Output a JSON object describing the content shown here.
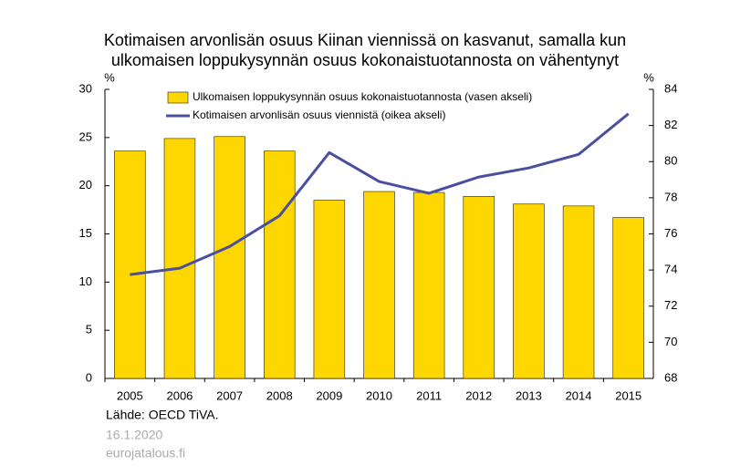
{
  "chart_data": {
    "type": "bar",
    "title": [
      "Kotimaisen arvonlisän osuus Kiinan viennissä on kasvanut, samalla kun",
      "ulkomaisen loppukysynnän osuus kokonaistuotannosta on vähentynyt"
    ],
    "y_label": "%",
    "y2_label": "%",
    "categories": [
      "2005",
      "2006",
      "2007",
      "2008",
      "2009",
      "2010",
      "2011",
      "2012",
      "2013",
      "2014",
      "2015"
    ],
    "series": [
      {
        "name": "Ulkomaisen loppukysynnän osuus kokonaistuotannosta (vasen akseli)",
        "type": "bar",
        "color": "#ffd700",
        "values": [
          23.6,
          24.9,
          25.1,
          23.6,
          18.5,
          19.4,
          19.3,
          18.9,
          18.1,
          17.9,
          16.7
        ]
      },
      {
        "name": "Kotimaisen arvonlisän osuus viennistä (oikea akseli)",
        "type": "line",
        "color": "#4b4f9f",
        "axis": "y2",
        "values": [
          73.75,
          74.1,
          75.3,
          77.0,
          80.5,
          78.9,
          78.25,
          79.15,
          79.65,
          80.4,
          82.65
        ]
      }
    ],
    "ylim": [
      0,
      30
    ],
    "yticks": [
      0,
      5,
      10,
      15,
      20,
      25,
      30
    ],
    "y2lim": [
      68,
      84
    ],
    "y2ticks": [
      68,
      70,
      72,
      74,
      76,
      78,
      80,
      82,
      84
    ],
    "source": "Lähde: OECD TiVA.",
    "date": "16.1.2020",
    "site": "eurojatalous.fi"
  }
}
